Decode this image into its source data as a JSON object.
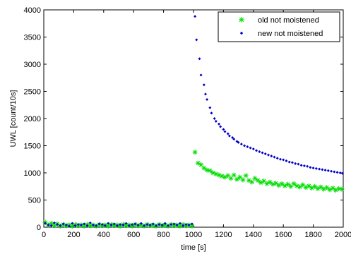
{
  "chart_data": {
    "type": "scatter",
    "xlabel": "time [s]",
    "ylabel": "UWL [count/10s]",
    "xlim": [
      0,
      2000
    ],
    "ylim": [
      0,
      4000
    ],
    "x_ticks": [
      0,
      200,
      400,
      600,
      800,
      1000,
      1200,
      1400,
      1600,
      1800,
      2000
    ],
    "y_ticks": [
      0,
      500,
      1000,
      1500,
      2000,
      2500,
      3000,
      3500,
      4000
    ],
    "grid": false,
    "legend_position": "top-right",
    "series": [
      {
        "name": "old  not moistened",
        "color": "#00dd00",
        "marker": "asterisk",
        "points": [
          [
            10,
            90
          ],
          [
            30,
            40
          ],
          [
            50,
            70
          ],
          [
            70,
            30
          ],
          [
            90,
            60
          ],
          [
            110,
            20
          ],
          [
            130,
            50
          ],
          [
            150,
            30
          ],
          [
            170,
            40
          ],
          [
            190,
            20
          ],
          [
            210,
            50
          ],
          [
            230,
            30
          ],
          [
            250,
            40
          ],
          [
            270,
            20
          ],
          [
            290,
            50
          ],
          [
            310,
            30
          ],
          [
            330,
            40
          ],
          [
            350,
            20
          ],
          [
            370,
            50
          ],
          [
            390,
            30
          ],
          [
            410,
            40
          ],
          [
            430,
            20
          ],
          [
            450,
            50
          ],
          [
            470,
            30
          ],
          [
            490,
            40
          ],
          [
            510,
            20
          ],
          [
            530,
            50
          ],
          [
            550,
            30
          ],
          [
            570,
            40
          ],
          [
            590,
            20
          ],
          [
            610,
            50
          ],
          [
            630,
            30
          ],
          [
            650,
            40
          ],
          [
            670,
            20
          ],
          [
            690,
            50
          ],
          [
            710,
            30
          ],
          [
            730,
            40
          ],
          [
            750,
            20
          ],
          [
            770,
            50
          ],
          [
            790,
            30
          ],
          [
            810,
            40
          ],
          [
            830,
            20
          ],
          [
            850,
            50
          ],
          [
            870,
            30
          ],
          [
            890,
            40
          ],
          [
            910,
            20
          ],
          [
            930,
            50
          ],
          [
            950,
            30
          ],
          [
            970,
            40
          ],
          [
            990,
            20
          ],
          [
            1010,
            1380
          ],
          [
            1030,
            1180
          ],
          [
            1050,
            1150
          ],
          [
            1070,
            1090
          ],
          [
            1090,
            1050
          ],
          [
            1110,
            1040
          ],
          [
            1130,
            1000
          ],
          [
            1150,
            980
          ],
          [
            1170,
            960
          ],
          [
            1190,
            940
          ],
          [
            1210,
            920
          ],
          [
            1230,
            950
          ],
          [
            1250,
            900
          ],
          [
            1270,
            960
          ],
          [
            1290,
            880
          ],
          [
            1310,
            920
          ],
          [
            1330,
            870
          ],
          [
            1350,
            950
          ],
          [
            1370,
            860
          ],
          [
            1390,
            830
          ],
          [
            1410,
            900
          ],
          [
            1430,
            860
          ],
          [
            1450,
            820
          ],
          [
            1470,
            850
          ],
          [
            1490,
            800
          ],
          [
            1510,
            830
          ],
          [
            1530,
            790
          ],
          [
            1550,
            810
          ],
          [
            1570,
            770
          ],
          [
            1590,
            800
          ],
          [
            1610,
            760
          ],
          [
            1630,
            790
          ],
          [
            1650,
            750
          ],
          [
            1670,
            800
          ],
          [
            1690,
            760
          ],
          [
            1710,
            740
          ],
          [
            1730,
            780
          ],
          [
            1750,
            730
          ],
          [
            1770,
            760
          ],
          [
            1790,
            720
          ],
          [
            1810,
            750
          ],
          [
            1830,
            710
          ],
          [
            1850,
            740
          ],
          [
            1870,
            700
          ],
          [
            1890,
            730
          ],
          [
            1910,
            690
          ],
          [
            1930,
            720
          ],
          [
            1950,
            680
          ],
          [
            1970,
            710
          ],
          [
            1990,
            700
          ]
        ]
      },
      {
        "name": "new  not moistened",
        "color": "#0000cc",
        "marker": "dot",
        "points": [
          [
            10,
            70
          ],
          [
            30,
            40
          ],
          [
            50,
            30
          ],
          [
            70,
            80
          ],
          [
            90,
            50
          ],
          [
            110,
            30
          ],
          [
            130,
            60
          ],
          [
            150,
            40
          ],
          [
            170,
            20
          ],
          [
            190,
            70
          ],
          [
            210,
            30
          ],
          [
            230,
            50
          ],
          [
            250,
            40
          ],
          [
            270,
            60
          ],
          [
            290,
            30
          ],
          [
            310,
            80
          ],
          [
            330,
            40
          ],
          [
            350,
            30
          ],
          [
            370,
            60
          ],
          [
            390,
            50
          ],
          [
            410,
            30
          ],
          [
            430,
            70
          ],
          [
            450,
            40
          ],
          [
            470,
            60
          ],
          [
            490,
            30
          ],
          [
            510,
            50
          ],
          [
            530,
            40
          ],
          [
            550,
            70
          ],
          [
            570,
            30
          ],
          [
            590,
            50
          ],
          [
            610,
            60
          ],
          [
            630,
            40
          ],
          [
            650,
            70
          ],
          [
            670,
            30
          ],
          [
            690,
            50
          ],
          [
            710,
            40
          ],
          [
            730,
            60
          ],
          [
            750,
            30
          ],
          [
            770,
            50
          ],
          [
            790,
            40
          ],
          [
            810,
            70
          ],
          [
            830,
            30
          ],
          [
            850,
            50
          ],
          [
            870,
            60
          ],
          [
            890,
            40
          ],
          [
            910,
            70
          ],
          [
            930,
            30
          ],
          [
            950,
            50
          ],
          [
            970,
            40
          ],
          [
            990,
            60
          ],
          [
            1010,
            3880
          ],
          [
            1020,
            3450
          ],
          [
            1040,
            3100
          ],
          [
            1050,
            2800
          ],
          [
            1070,
            2620
          ],
          [
            1080,
            2450
          ],
          [
            1090,
            2350
          ],
          [
            1110,
            2200
          ],
          [
            1120,
            2100
          ],
          [
            1140,
            2000
          ],
          [
            1150,
            1950
          ],
          [
            1170,
            1900
          ],
          [
            1180,
            1850
          ],
          [
            1200,
            1800
          ],
          [
            1210,
            1760
          ],
          [
            1230,
            1720
          ],
          [
            1240,
            1680
          ],
          [
            1260,
            1650
          ],
          [
            1270,
            1620
          ],
          [
            1290,
            1580
          ],
          [
            1300,
            1560
          ],
          [
            1320,
            1530
          ],
          [
            1340,
            1500
          ],
          [
            1360,
            1480
          ],
          [
            1380,
            1460
          ],
          [
            1400,
            1440
          ],
          [
            1420,
            1410
          ],
          [
            1440,
            1390
          ],
          [
            1460,
            1370
          ],
          [
            1480,
            1350
          ],
          [
            1500,
            1330
          ],
          [
            1520,
            1310
          ],
          [
            1540,
            1290
          ],
          [
            1560,
            1270
          ],
          [
            1580,
            1250
          ],
          [
            1600,
            1240
          ],
          [
            1620,
            1220
          ],
          [
            1640,
            1200
          ],
          [
            1660,
            1190
          ],
          [
            1680,
            1170
          ],
          [
            1700,
            1160
          ],
          [
            1720,
            1140
          ],
          [
            1740,
            1130
          ],
          [
            1760,
            1120
          ],
          [
            1780,
            1100
          ],
          [
            1800,
            1090
          ],
          [
            1820,
            1080
          ],
          [
            1840,
            1070
          ],
          [
            1860,
            1060
          ],
          [
            1880,
            1050
          ],
          [
            1900,
            1040
          ],
          [
            1920,
            1030
          ],
          [
            1940,
            1020
          ],
          [
            1960,
            1010
          ],
          [
            1980,
            1000
          ],
          [
            1995,
            990
          ]
        ]
      }
    ]
  }
}
